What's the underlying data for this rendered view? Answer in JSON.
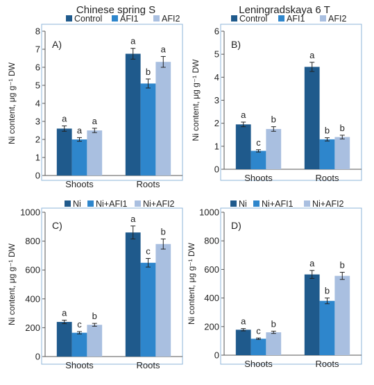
{
  "colors": {
    "control": "#1f5a8c",
    "afi1": "#2e86cc",
    "afi2": "#a9bfe0",
    "frame": "#8eb4da",
    "axis": "#555555",
    "text": "#222222"
  },
  "column_titles": [
    "Chinese spring S",
    "Leningradskaya 6 T"
  ],
  "chart_data": [
    {
      "type": "bar",
      "panel_label": "A)",
      "column_title": "Chinese spring S",
      "ylabel": "Ni content, μg g⁻¹ DW",
      "ylim": [
        0,
        8
      ],
      "yticks": [
        "0",
        "1",
        "2",
        "3",
        "4",
        "5",
        "6",
        "7",
        "8"
      ],
      "categories": [
        "Shoots",
        "Roots"
      ],
      "series": [
        {
          "name": "Control",
          "values": [
            2.6,
            6.75
          ],
          "errors": [
            0.15,
            0.3
          ],
          "letters": [
            "a",
            "a"
          ]
        },
        {
          "name": "AFI1",
          "values": [
            2.0,
            5.1
          ],
          "errors": [
            0.1,
            0.25
          ],
          "letters": [
            "a",
            "b"
          ]
        },
        {
          "name": "AFI2",
          "values": [
            2.5,
            6.3
          ],
          "errors": [
            0.12,
            0.3
          ],
          "letters": [
            "a",
            "a"
          ]
        }
      ],
      "legend": "top"
    },
    {
      "type": "bar",
      "panel_label": "B)",
      "column_title": "Leningradskaya 6 T",
      "ylabel": "Ni content, μg g⁻¹ DW",
      "ylim": [
        0,
        6
      ],
      "yticks": [
        "0",
        "1",
        "2",
        "3",
        "4",
        "5",
        "6"
      ],
      "categories": [
        "Shoots",
        "Roots"
      ],
      "series": [
        {
          "name": "Control",
          "values": [
            1.95,
            4.45
          ],
          "errors": [
            0.1,
            0.2
          ],
          "letters": [
            "a",
            "a"
          ]
        },
        {
          "name": "AFI1",
          "values": [
            0.8,
            1.3
          ],
          "errors": [
            0.05,
            0.07
          ],
          "letters": [
            "c",
            "b"
          ]
        },
        {
          "name": "AFI2",
          "values": [
            1.75,
            1.4
          ],
          "errors": [
            0.1,
            0.08
          ],
          "letters": [
            "b",
            "b"
          ]
        }
      ],
      "legend": "top"
    },
    {
      "type": "bar",
      "panel_label": "C)",
      "column_title": "",
      "ylabel": "Ni content, μg g⁻¹ DW",
      "ylim": [
        0,
        1000
      ],
      "yticks": [
        "0",
        "200",
        "400",
        "600",
        "800",
        "1000"
      ],
      "categories": [
        "Shoots",
        "Roots"
      ],
      "series": [
        {
          "name": "Ni",
          "values": [
            240,
            860
          ],
          "errors": [
            12,
            45
          ],
          "letters": [
            "a",
            "a"
          ]
        },
        {
          "name": "Ni+AFI1",
          "values": [
            165,
            650
          ],
          "errors": [
            8,
            30
          ],
          "letters": [
            "c",
            "c"
          ]
        },
        {
          "name": "Ni+AFI2",
          "values": [
            220,
            780
          ],
          "errors": [
            10,
            35
          ],
          "letters": [
            "b",
            "b"
          ]
        }
      ],
      "legend": "top"
    },
    {
      "type": "bar",
      "panel_label": "D)",
      "column_title": "",
      "ylabel": "Ni content, μg g⁻¹ DW",
      "ylim": [
        0,
        1000
      ],
      "yticks": [
        "0",
        "200",
        "400",
        "600",
        "800",
        "1000"
      ],
      "categories": [
        "Shoots",
        "Roots"
      ],
      "series": [
        {
          "name": "Ni",
          "values": [
            178,
            565
          ],
          "errors": [
            8,
            28
          ],
          "letters": [
            "a",
            "a"
          ]
        },
        {
          "name": "Ni+AFI1",
          "values": [
            115,
            380
          ],
          "errors": [
            5,
            20
          ],
          "letters": [
            "c",
            "b"
          ]
        },
        {
          "name": "Ni+AFI2",
          "values": [
            160,
            555
          ],
          "errors": [
            8,
            25
          ],
          "letters": [
            "b",
            "b"
          ]
        }
      ],
      "legend": "top"
    }
  ]
}
